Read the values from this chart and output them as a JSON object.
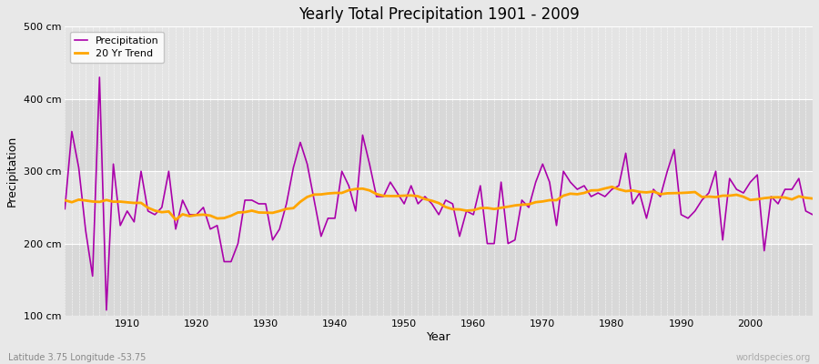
{
  "title": "Yearly Total Precipitation 1901 - 2009",
  "xlabel": "Year",
  "ylabel": "Precipitation",
  "subtitle": "Latitude 3.75 Longitude -53.75",
  "watermark": "worldspecies.org",
  "precip_color": "#aa00aa",
  "trend_color": "#ffa500",
  "fig_bg_color": "#e8e8e8",
  "band_colors": [
    "#dcdcdc",
    "#e8e8e8",
    "#dcdcdc",
    "#e8e8e8"
  ],
  "ylim": [
    100,
    500
  ],
  "yticks": [
    100,
    200,
    300,
    400,
    500
  ],
  "ytick_labels": [
    "100 cm",
    "200 cm",
    "300 cm",
    "400 cm",
    "500 cm"
  ],
  "years": [
    1901,
    1902,
    1903,
    1904,
    1905,
    1906,
    1907,
    1908,
    1909,
    1910,
    1911,
    1912,
    1913,
    1914,
    1915,
    1916,
    1917,
    1918,
    1919,
    1920,
    1921,
    1922,
    1923,
    1924,
    1925,
    1926,
    1927,
    1928,
    1929,
    1930,
    1931,
    1932,
    1933,
    1934,
    1935,
    1936,
    1937,
    1938,
    1939,
    1940,
    1941,
    1942,
    1943,
    1944,
    1945,
    1946,
    1947,
    1948,
    1949,
    1950,
    1951,
    1952,
    1953,
    1954,
    1955,
    1956,
    1957,
    1958,
    1959,
    1960,
    1961,
    1962,
    1963,
    1964,
    1965,
    1966,
    1967,
    1968,
    1969,
    1970,
    1971,
    1972,
    1973,
    1974,
    1975,
    1976,
    1977,
    1978,
    1979,
    1980,
    1981,
    1982,
    1983,
    1984,
    1985,
    1986,
    1987,
    1988,
    1989,
    1990,
    1991,
    1992,
    1993,
    1994,
    1995,
    1996,
    1997,
    1998,
    1999,
    2000,
    2001,
    2002,
    2003,
    2004,
    2005,
    2006,
    2007,
    2008,
    2009
  ],
  "precip": [
    248,
    355,
    305,
    218,
    155,
    430,
    108,
    310,
    225,
    245,
    230,
    300,
    245,
    240,
    250,
    300,
    220,
    260,
    240,
    240,
    250,
    220,
    225,
    175,
    175,
    200,
    260,
    260,
    255,
    255,
    205,
    220,
    255,
    305,
    340,
    310,
    260,
    210,
    235,
    235,
    300,
    280,
    245,
    350,
    310,
    265,
    265,
    285,
    270,
    255,
    280,
    255,
    265,
    255,
    240,
    260,
    255,
    210,
    245,
    240,
    280,
    200,
    200,
    285,
    200,
    205,
    260,
    250,
    285,
    310,
    285,
    225,
    300,
    285,
    275,
    280,
    265,
    270,
    265,
    275,
    280,
    325,
    255,
    270,
    235,
    275,
    265,
    300,
    330,
    240,
    235,
    245,
    260,
    270,
    300,
    205,
    290,
    275,
    270,
    285,
    295,
    190,
    265,
    255,
    275,
    275,
    290,
    245,
    240
  ],
  "xlim": [
    1901,
    2009
  ],
  "xticks": [
    1910,
    1920,
    1930,
    1940,
    1950,
    1960,
    1970,
    1980,
    1990,
    2000
  ]
}
